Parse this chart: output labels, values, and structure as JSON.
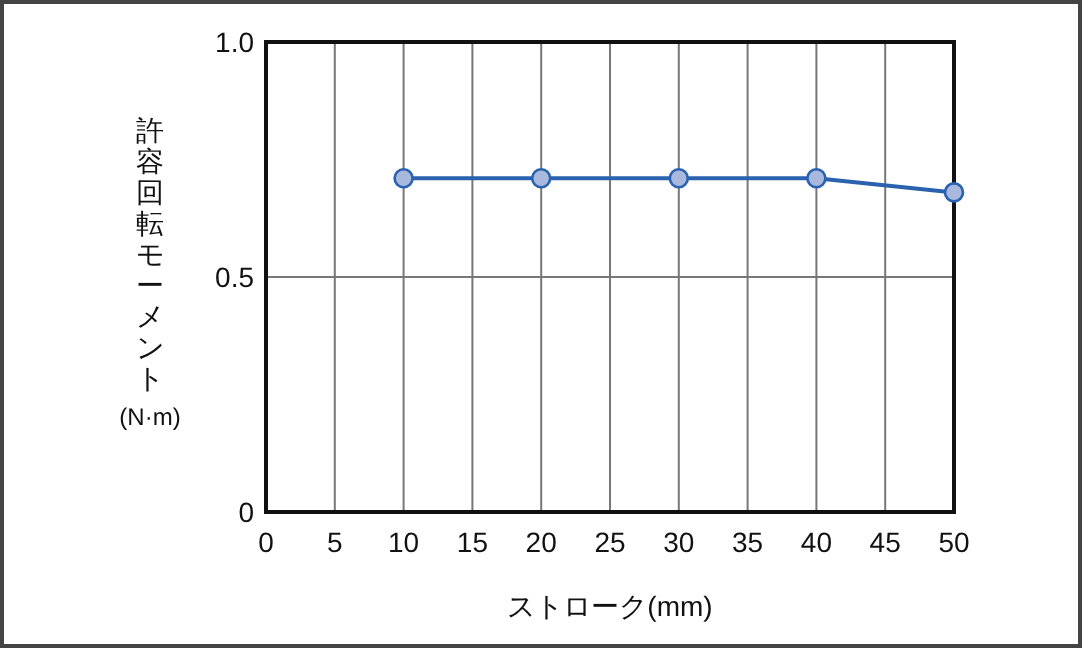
{
  "chart_data": {
    "type": "line",
    "xlabel": "ストローク(mm)",
    "ylabel": "許容回転モーメント(N·m)",
    "x": [
      10,
      20,
      30,
      40,
      50
    ],
    "series": [
      {
        "color": "#2a62b0",
        "values": [
          0.71,
          0.71,
          0.71,
          0.71,
          0.68
        ]
      }
    ],
    "xlim": [
      0,
      50
    ],
    "xticks": [
      0,
      5,
      10,
      15,
      20,
      25,
      30,
      35,
      40,
      45,
      50
    ],
    "ylim": [
      0,
      1
    ],
    "yticks": [
      {
        "value": 0,
        "label": "0"
      },
      {
        "value": 0.5,
        "label": "0.5"
      },
      {
        "value": 1,
        "label": "1.0"
      }
    ],
    "grid": true,
    "marker": "circle",
    "line_style": "solid"
  }
}
